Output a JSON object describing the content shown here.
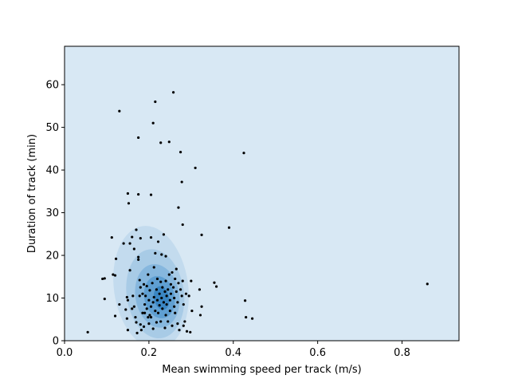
{
  "chart_data": {
    "type": "scatter",
    "title": "",
    "xlabel": "Mean swimming speed per track (m/s)",
    "ylabel": "Duration of track (min)",
    "xlim": [
      0.0,
      0.935
    ],
    "ylim": [
      0,
      69
    ],
    "xticks": [
      0.0,
      0.2,
      0.4,
      0.6,
      0.8
    ],
    "xtick_labels": [
      "0.0",
      "0.2",
      "0.4",
      "0.6",
      "0.8"
    ],
    "yticks": [
      0,
      10,
      20,
      30,
      40,
      50,
      60
    ],
    "ytick_labels": [
      "0",
      "10",
      "20",
      "30",
      "40",
      "50",
      "60"
    ],
    "grid": false,
    "legend": "none",
    "background_color": "#d8e8f4",
    "density_colors": [
      "#c3dbee",
      "#a8cbe6",
      "#86b7de",
      "#5f9fd2",
      "#3a86c3"
    ],
    "point_color": "#000000",
    "points": [
      [
        0.055,
        2.0
      ],
      [
        0.09,
        14.5
      ],
      [
        0.095,
        14.6
      ],
      [
        0.095,
        9.8
      ],
      [
        0.112,
        24.2
      ],
      [
        0.115,
        15.5
      ],
      [
        0.12,
        15.3
      ],
      [
        0.12,
        5.8
      ],
      [
        0.122,
        19.2
      ],
      [
        0.13,
        53.8
      ],
      [
        0.13,
        8.5
      ],
      [
        0.14,
        22.8
      ],
      [
        0.145,
        7.3
      ],
      [
        0.148,
        10.2
      ],
      [
        0.148,
        5.2
      ],
      [
        0.15,
        9.5
      ],
      [
        0.15,
        2.5
      ],
      [
        0.15,
        34.5
      ],
      [
        0.152,
        32.2
      ],
      [
        0.155,
        16.5
      ],
      [
        0.155,
        22.8
      ],
      [
        0.16,
        24.3
      ],
      [
        0.16,
        7.5
      ],
      [
        0.162,
        10.5
      ],
      [
        0.165,
        8.0
      ],
      [
        0.165,
        21.5
      ],
      [
        0.17,
        26.0
      ],
      [
        0.168,
        5.5
      ],
      [
        0.17,
        4.3
      ],
      [
        0.172,
        1.8
      ],
      [
        0.175,
        47.6
      ],
      [
        0.175,
        34.3
      ],
      [
        0.175,
        19.6
      ],
      [
        0.175,
        19.0
      ],
      [
        0.178,
        14.2
      ],
      [
        0.178,
        10.5
      ],
      [
        0.18,
        12.5
      ],
      [
        0.18,
        24.0
      ],
      [
        0.18,
        3.8
      ],
      [
        0.182,
        2.5
      ],
      [
        0.185,
        6.5
      ],
      [
        0.185,
        11.0
      ],
      [
        0.188,
        13.2
      ],
      [
        0.188,
        3.3
      ],
      [
        0.19,
        8.5
      ],
      [
        0.19,
        6.5
      ],
      [
        0.192,
        10.5
      ],
      [
        0.195,
        7.5
      ],
      [
        0.195,
        12.8
      ],
      [
        0.198,
        5.5
      ],
      [
        0.198,
        15.5
      ],
      [
        0.2,
        9.5
      ],
      [
        0.2,
        4.0
      ],
      [
        0.202,
        11.8
      ],
      [
        0.202,
        6.0
      ],
      [
        0.205,
        34.2
      ],
      [
        0.205,
        24.2
      ],
      [
        0.205,
        8.0
      ],
      [
        0.205,
        5.5
      ],
      [
        0.208,
        13.5
      ],
      [
        0.21,
        51.0
      ],
      [
        0.21,
        9.0
      ],
      [
        0.21,
        2.8
      ],
      [
        0.212,
        10.2
      ],
      [
        0.212,
        17.2
      ],
      [
        0.215,
        56.0
      ],
      [
        0.215,
        20.5
      ],
      [
        0.215,
        7.0
      ],
      [
        0.218,
        12.0
      ],
      [
        0.218,
        4.3
      ],
      [
        0.22,
        9.5
      ],
      [
        0.22,
        14.5
      ],
      [
        0.222,
        23.2
      ],
      [
        0.222,
        6.5
      ],
      [
        0.225,
        11.0
      ],
      [
        0.225,
        8.3
      ],
      [
        0.228,
        46.4
      ],
      [
        0.228,
        13.8
      ],
      [
        0.228,
        4.5
      ],
      [
        0.23,
        20.2
      ],
      [
        0.23,
        10.0
      ],
      [
        0.232,
        12.5
      ],
      [
        0.232,
        7.5
      ],
      [
        0.235,
        9.0
      ],
      [
        0.235,
        24.9
      ],
      [
        0.238,
        11.5
      ],
      [
        0.238,
        3.0
      ],
      [
        0.24,
        19.8
      ],
      [
        0.24,
        14.0
      ],
      [
        0.24,
        6.0
      ],
      [
        0.242,
        10.5
      ],
      [
        0.242,
        8.5
      ],
      [
        0.245,
        12.0
      ],
      [
        0.245,
        4.5
      ],
      [
        0.248,
        46.6
      ],
      [
        0.248,
        15.5
      ],
      [
        0.25,
        9.5
      ],
      [
        0.25,
        7.0
      ],
      [
        0.252,
        13.2
      ],
      [
        0.252,
        11.0
      ],
      [
        0.255,
        3.5
      ],
      [
        0.255,
        16.0
      ],
      [
        0.258,
        58.2
      ],
      [
        0.258,
        12.5
      ],
      [
        0.26,
        10.0
      ],
      [
        0.26,
        8.0
      ],
      [
        0.262,
        14.5
      ],
      [
        0.262,
        6.5
      ],
      [
        0.265,
        16.8
      ],
      [
        0.265,
        11.5
      ],
      [
        0.268,
        9.0
      ],
      [
        0.268,
        4.0
      ],
      [
        0.27,
        31.2
      ],
      [
        0.27,
        13.5
      ],
      [
        0.272,
        2.5
      ],
      [
        0.275,
        44.2
      ],
      [
        0.275,
        12.0
      ],
      [
        0.278,
        37.2
      ],
      [
        0.278,
        10.5
      ],
      [
        0.28,
        27.2
      ],
      [
        0.28,
        14.0
      ],
      [
        0.282,
        8.5
      ],
      [
        0.282,
        3.5
      ],
      [
        0.285,
        4.5
      ],
      [
        0.288,
        11.0
      ],
      [
        0.29,
        2.2
      ],
      [
        0.295,
        10.5
      ],
      [
        0.298,
        2.0
      ],
      [
        0.3,
        14.0
      ],
      [
        0.302,
        7.0
      ],
      [
        0.31,
        40.5
      ],
      [
        0.32,
        12.0
      ],
      [
        0.322,
        6.0
      ],
      [
        0.325,
        24.8
      ],
      [
        0.325,
        8.0
      ],
      [
        0.39,
        26.5
      ],
      [
        0.355,
        13.6
      ],
      [
        0.36,
        12.7
      ],
      [
        0.425,
        44.0
      ],
      [
        0.428,
        9.4
      ],
      [
        0.43,
        5.5
      ],
      [
        0.445,
        5.2
      ],
      [
        0.86,
        13.3
      ]
    ]
  }
}
